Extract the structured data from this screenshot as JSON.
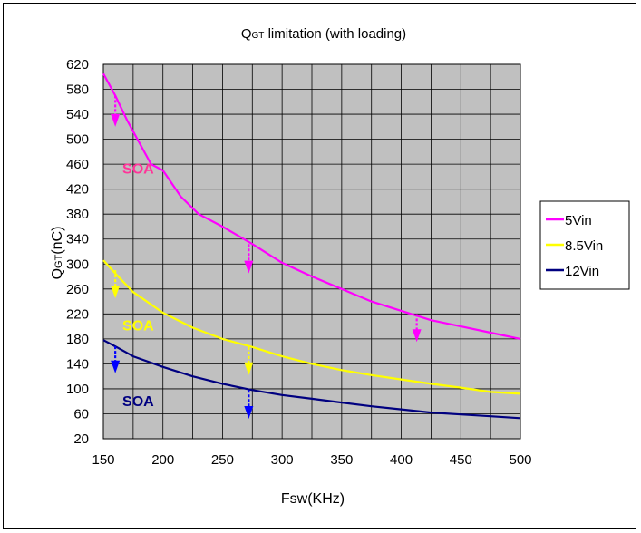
{
  "chart_data": {
    "type": "line",
    "title_main": "Q",
    "title_sub": "GT",
    "title_rest": " limitation (with loading)",
    "ylabel_main": "Q",
    "ylabel_sub": "GT",
    "ylabel_rest": "(nC)",
    "xlabel": "Fsw(KHz)",
    "xlim": [
      150,
      500
    ],
    "ylim": [
      20,
      620
    ],
    "xticks": [
      150,
      200,
      250,
      300,
      350,
      400,
      450,
      500
    ],
    "yticks": [
      20,
      60,
      100,
      140,
      180,
      220,
      260,
      300,
      340,
      380,
      420,
      460,
      500,
      540,
      580,
      620
    ],
    "ygrid_step": 40,
    "xgrid_step": 25,
    "plot_background": "#c0c0c0",
    "legend_position": "right",
    "series": [
      {
        "name": "5Vin",
        "color": "#ff00ff",
        "x": [
          150,
          160,
          170,
          180,
          190,
          200,
          215,
          230,
          250,
          275,
          300,
          325,
          350,
          375,
          400,
          425,
          450,
          475,
          500
        ],
        "values": [
          605,
          570,
          530,
          495,
          460,
          450,
          408,
          380,
          360,
          332,
          302,
          280,
          260,
          240,
          225,
          210,
          200,
          190,
          180
        ]
      },
      {
        "name": "8.5Vin",
        "color": "#ffff00",
        "x": [
          150,
          160,
          175,
          200,
          225,
          250,
          275,
          300,
          325,
          350,
          375,
          400,
          425,
          450,
          475,
          500
        ],
        "values": [
          306,
          285,
          255,
          222,
          198,
          180,
          167,
          152,
          140,
          130,
          122,
          115,
          108,
          102,
          95,
          92
        ]
      },
      {
        "name": "12Vin",
        "color": "#000080",
        "x": [
          150,
          160,
          175,
          200,
          225,
          250,
          275,
          300,
          325,
          350,
          375,
          400,
          425,
          450,
          475,
          500
        ],
        "values": [
          178,
          168,
          152,
          135,
          120,
          108,
          98,
          90,
          84,
          78,
          72,
          67,
          62,
          59,
          56,
          53
        ]
      }
    ],
    "arrows": [
      {
        "x": 160,
        "from": 570,
        "to": 520,
        "color": "#ff00ff"
      },
      {
        "x": 272,
        "from": 332,
        "to": 285,
        "color": "#ff00ff"
      },
      {
        "x": 413,
        "from": 220,
        "to": 175,
        "color": "#ff00ff"
      },
      {
        "x": 160,
        "from": 290,
        "to": 245,
        "color": "#ffff00"
      },
      {
        "x": 272,
        "from": 167,
        "to": 122,
        "color": "#ffff00"
      },
      {
        "x": 160,
        "from": 168,
        "to": 125,
        "color": "#0000ff"
      },
      {
        "x": 272,
        "from": 98,
        "to": 52,
        "color": "#0000ff"
      }
    ],
    "annotations": [
      {
        "text": "SOA",
        "x": 166,
        "y": 454,
        "color": "#ff3399"
      },
      {
        "text": "SOA",
        "x": 166,
        "y": 202,
        "color": "#ffff00"
      },
      {
        "text": "SOA",
        "x": 166,
        "y": 81,
        "color": "#000080"
      }
    ]
  }
}
